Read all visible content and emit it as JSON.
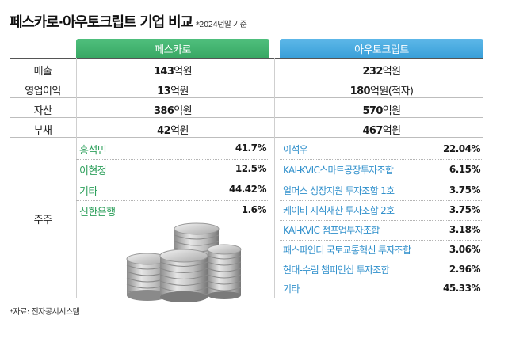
{
  "header": {
    "title": "페스카로·아우토크립트 기업 비교",
    "subtitle": "*2024년말 기준"
  },
  "columns": {
    "company_a": "페스카로",
    "company_b": "아우토크립트"
  },
  "rows": [
    {
      "label": "매출",
      "a_num": "143",
      "a_unit": "억원",
      "b_num": "232",
      "b_unit": "억원"
    },
    {
      "label": "영업이익",
      "a_num": "13",
      "a_unit": "억원",
      "b_num": "180",
      "b_unit": "억원(적자)"
    },
    {
      "label": "자산",
      "a_num": "386",
      "a_unit": "억원",
      "b_num": "570",
      "b_unit": "억원"
    },
    {
      "label": "부채",
      "a_num": "42",
      "a_unit": "억원",
      "b_num": "467",
      "b_unit": "억원"
    }
  ],
  "shareholders_label": "주주",
  "shareholders_a": [
    {
      "name": "홍석민",
      "pct": "41.7%"
    },
    {
      "name": "이현정",
      "pct": "12.5%"
    },
    {
      "name": "기타",
      "pct": "44.42%"
    },
    {
      "name": "신한은행",
      "pct": "1.6%"
    }
  ],
  "shareholders_b": [
    {
      "name": "이석우",
      "pct": "22.04%"
    },
    {
      "name": "KAI-KVIC스마트공장투자조합",
      "pct": "6.15%"
    },
    {
      "name": "얼머스 성장지원 투자조합 1호",
      "pct": "3.75%"
    },
    {
      "name": "케이비 지식재산 투자조합 2호",
      "pct": "3.75%"
    },
    {
      "name": "KAI-KVIC 점프업투자조합",
      "pct": "3.18%"
    },
    {
      "name": "패스파인더 국토교통혁신 투자조합",
      "pct": "3.06%"
    },
    {
      "name": "현대-수림 챔피언십 투자조합",
      "pct": "2.96%"
    },
    {
      "name": "기타",
      "pct": "45.33%"
    }
  ],
  "source": "*자료: 전자공시시스템"
}
